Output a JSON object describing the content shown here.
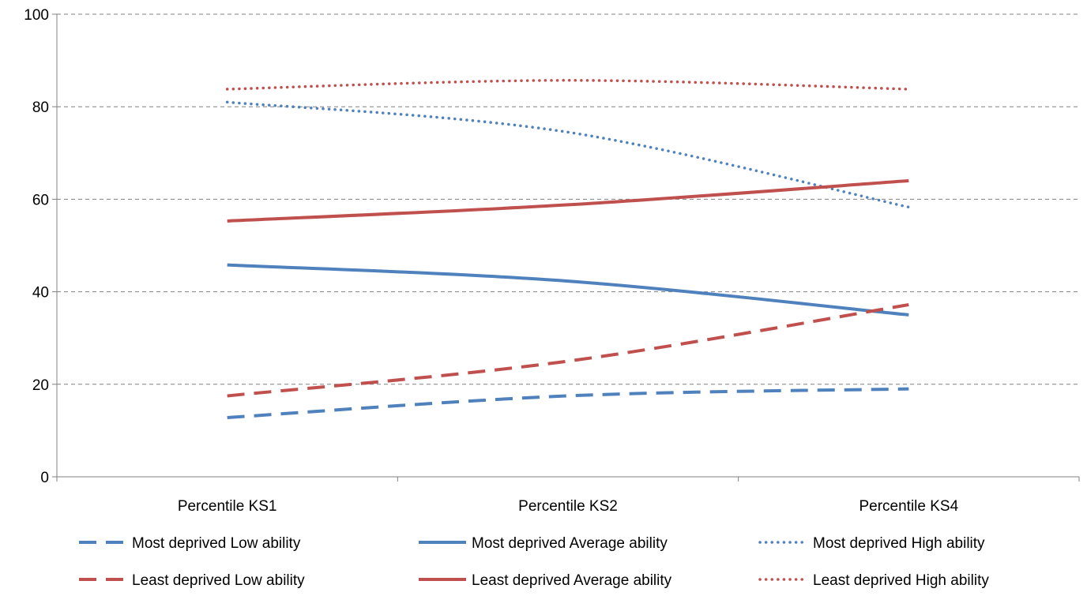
{
  "chart_data": {
    "type": "line",
    "title": "",
    "xlabel": "",
    "ylabel": "",
    "categories": [
      "Percentile KS1",
      "Percentile KS2",
      "Percentile KS4"
    ],
    "ylim": [
      0,
      100
    ],
    "yticks": [
      0,
      20,
      40,
      60,
      80,
      100
    ],
    "grid": true,
    "legend_position": "bottom",
    "series": [
      {
        "name": "Most deprived Low ability",
        "values": [
          12.8,
          17.5,
          19.0
        ],
        "color": "#4F81BD",
        "style": "dashed"
      },
      {
        "name": "Most deprived Average ability",
        "values": [
          45.8,
          42.3,
          35.0
        ],
        "color": "#4F81BD",
        "style": "solid"
      },
      {
        "name": "Most deprived High ability",
        "values": [
          81.0,
          74.5,
          58.3
        ],
        "color": "#4F81BD",
        "style": "dotted"
      },
      {
        "name": "Least deprived Low ability",
        "values": [
          17.5,
          25.0,
          37.2
        ],
        "color": "#C0504D",
        "style": "dashed"
      },
      {
        "name": "Least deprived Average ability",
        "values": [
          55.3,
          58.8,
          64.0
        ],
        "color": "#C0504D",
        "style": "solid"
      },
      {
        "name": "Least deprived High ability",
        "values": [
          83.8,
          85.7,
          83.8
        ],
        "color": "#C0504D",
        "style": "dotted"
      }
    ]
  }
}
